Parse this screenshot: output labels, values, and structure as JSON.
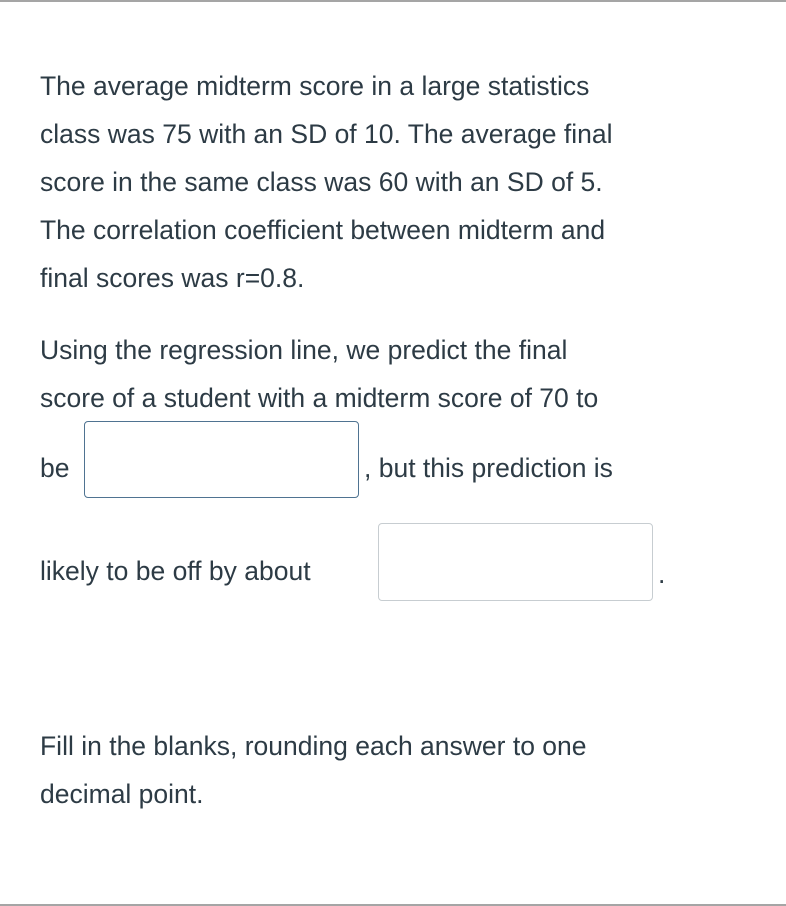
{
  "question": {
    "paragraph1": [
      "The average midterm score in a large statistics",
      "class was 75 with an SD of 10. The average final",
      "score in the same class was 60 with an SD of 5.",
      "The correlation coefficient between midterm and",
      "final scores was r=0.8."
    ],
    "paragraph2": [
      "Using the regression line, we predict the final",
      "score of a student with a midterm score of 70 to"
    ],
    "before_blank1": "be",
    "after_blank1": ", but this prediction is",
    "before_blank2": "likely to be off by about",
    "after_blank2": ".",
    "blank1_value": "",
    "blank2_value": "",
    "instructions": [
      "Fill in the blanks, rounding each answer to one",
      "decimal point."
    ]
  }
}
